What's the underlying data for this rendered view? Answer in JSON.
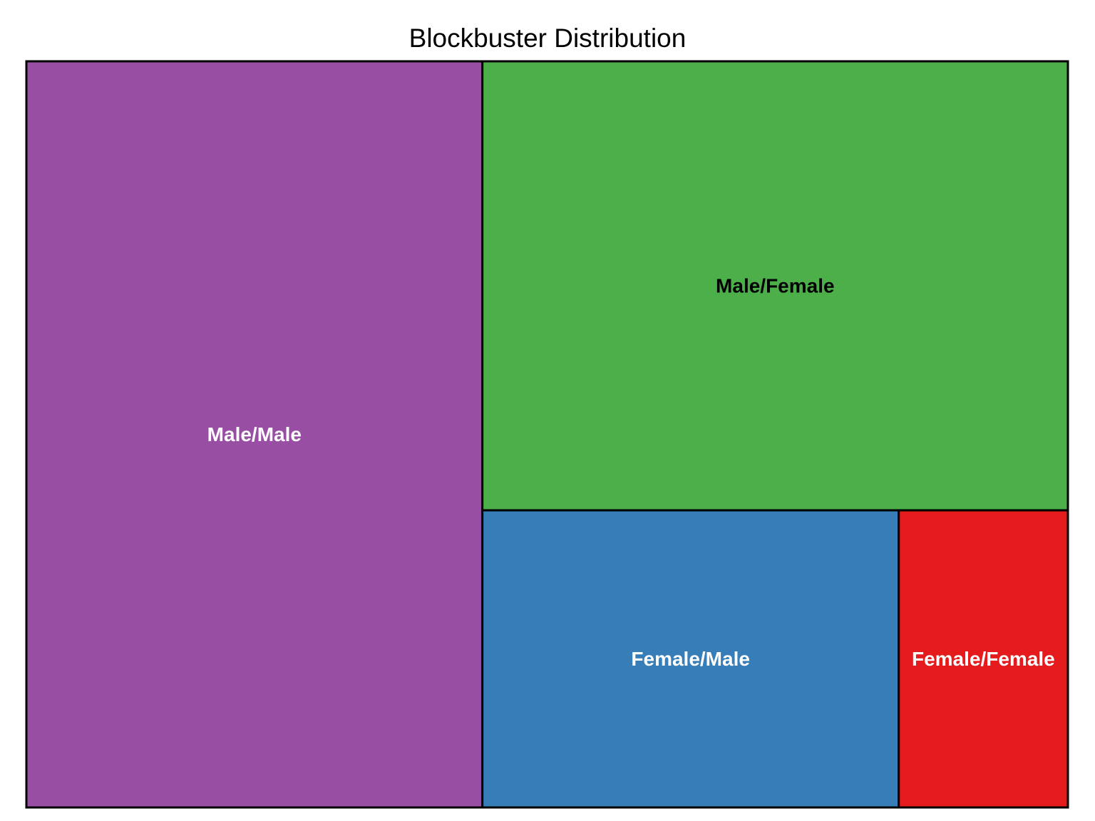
{
  "chart_data": {
    "type": "treemap",
    "title": "Blockbuster Distribution",
    "items": [
      {
        "label": "Male/Male",
        "value": 44,
        "color": "#984EA3",
        "label_color": "#ffffff"
      },
      {
        "label": "Male/Female",
        "value": 34,
        "color": "#4DAF4A",
        "label_color": "#000000"
      },
      {
        "label": "Female/Male",
        "value": 16,
        "color": "#377EB8",
        "label_color": "#ffffff"
      },
      {
        "label": "Female/Female",
        "value": 6.5,
        "color": "#E41A1C",
        "label_color": "#ffffff"
      }
    ]
  }
}
